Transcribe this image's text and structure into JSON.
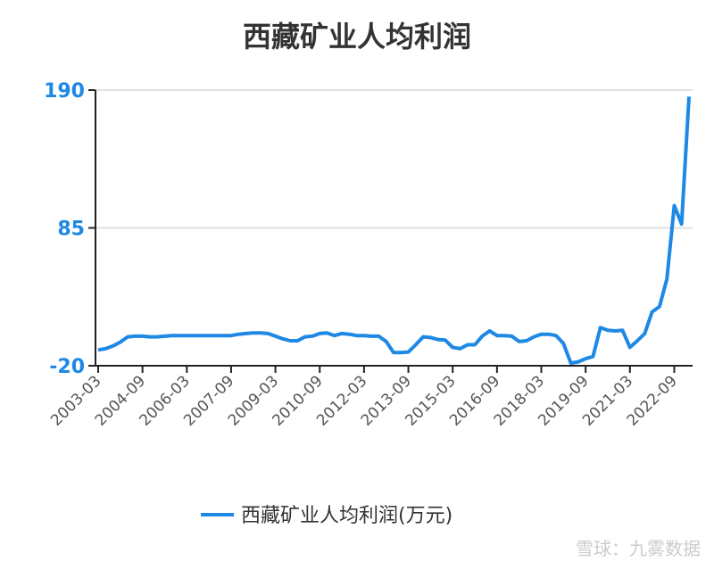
{
  "chart_data": {
    "type": "line",
    "title": "西藏矿业人均利润",
    "categories": [
      "2003-03",
      null,
      null,
      null,
      null,
      null,
      "2004-09",
      null,
      null,
      null,
      null,
      null,
      "2006-03",
      null,
      null,
      null,
      null,
      null,
      "2007-09",
      null,
      null,
      null,
      null,
      null,
      "2009-03",
      null,
      null,
      null,
      null,
      null,
      "2010-09",
      null,
      null,
      null,
      null,
      null,
      "2012-03",
      null,
      null,
      null,
      null,
      null,
      "2013-09",
      null,
      null,
      null,
      null,
      null,
      "2015-03",
      null,
      null,
      null,
      null,
      null,
      "2016-09",
      null,
      null,
      null,
      null,
      null,
      "2018-03",
      null,
      null,
      null,
      null,
      null,
      "2019-09",
      null,
      null,
      null,
      null,
      null,
      "2021-03",
      null,
      null,
      null,
      null,
      null,
      "2022-09",
      null,
      null
    ],
    "series": [
      {
        "name": "西藏矿业人均利润(万元)",
        "color": "#1e88e5",
        "values": [
          -8,
          -7,
          -5,
          -2,
          2,
          2.5,
          2.5,
          2,
          2,
          2.5,
          3,
          3,
          3,
          3,
          3,
          3,
          3,
          3,
          3,
          4,
          4.5,
          5,
          5,
          4.5,
          2.5,
          0.5,
          -1,
          -1,
          2,
          2.5,
          4.5,
          5,
          3,
          4.5,
          4,
          3,
          3,
          2.5,
          2.5,
          -1.6,
          -10,
          -10,
          -9.5,
          -4,
          2,
          1.5,
          0,
          -0.5,
          -6,
          -7,
          -4,
          -4,
          2.5,
          6.5,
          3,
          3,
          2.5,
          -1.6,
          -1,
          2,
          4,
          4,
          3,
          -3,
          -18,
          -17,
          -14.6,
          -13,
          9,
          7,
          6.5,
          7,
          -6,
          -1,
          4.5,
          21,
          25,
          46,
          102,
          88,
          185
        ]
      }
    ],
    "ylim": [
      -20,
      190
    ],
    "yticks": [
      -20,
      85,
      190
    ],
    "grid": true,
    "watermark": "雪球：九雾数据"
  }
}
